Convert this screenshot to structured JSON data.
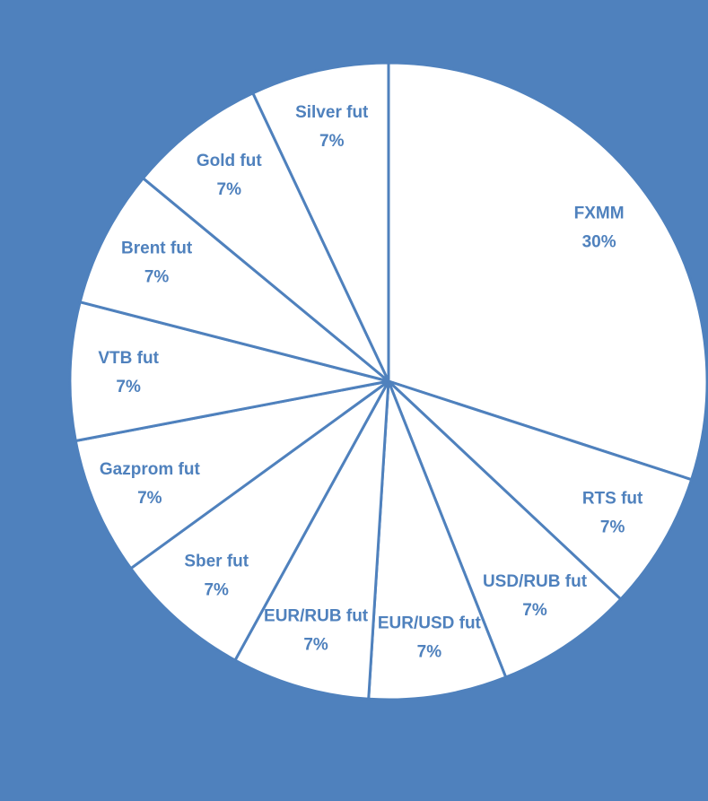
{
  "chart_data": {
    "type": "pie",
    "categories": [
      "FXMM",
      "RTS fut",
      "USD/RUB fut",
      "EUR/USD fut",
      "EUR/RUB fut",
      "Sber fut",
      "Gazprom fut",
      "VTB fut",
      "Brent fut",
      "Gold fut",
      "Silver fut"
    ],
    "values": [
      30,
      7,
      7,
      7,
      7,
      7,
      7,
      7,
      7,
      7,
      7
    ],
    "value_labels": [
      "30%",
      "7%",
      "7%",
      "7%",
      "7%",
      "7%",
      "7%",
      "7%",
      "7%",
      "7%",
      "7%"
    ],
    "color": "#ffffff",
    "edge_color": "#4f81bd",
    "label_color": "#4f81bd",
    "background": "#4f81bd"
  }
}
